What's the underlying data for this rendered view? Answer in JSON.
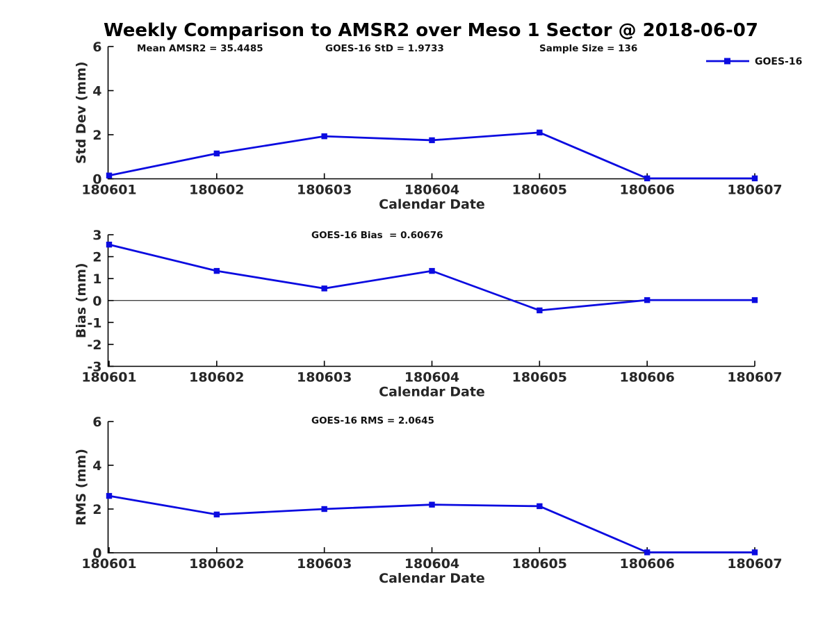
{
  "title": "Weekly Comparison to AMSR2 over Meso 1 Sector @ 2018-06-07",
  "annotations": {
    "mean_amsr2": "Mean AMSR2 = 35.4485",
    "goes16_std": "GOES-16 StD = 1.9733",
    "sample_size": "Sample Size = 136",
    "goes16_bias": "GOES-16 Bias  = 0.60676",
    "goes16_rms": "GOES-16 RMS = 2.0645"
  },
  "series": {
    "name": "GOES-16",
    "color": "#0b0be0"
  },
  "chart_data": [
    {
      "type": "line",
      "subplot": "std_dev",
      "title": "",
      "xlabel": "Calendar Date",
      "ylabel": "Std Dev (mm)",
      "categories": [
        "180601",
        "180602",
        "180603",
        "180604",
        "180605",
        "180606",
        "180607"
      ],
      "series": [
        {
          "name": "GOES-16",
          "color": "#0b0be0",
          "marker": "square",
          "values": [
            0.15,
            1.15,
            1.93,
            1.75,
            2.1,
            0.02,
            0.02
          ]
        }
      ],
      "ylim": [
        0,
        6
      ],
      "yticks": [
        0,
        2,
        4,
        6
      ],
      "grid": false,
      "legend_position": "top-right",
      "annotations": [
        "Mean AMSR2 = 35.4485",
        "GOES-16 StD = 1.9733",
        "Sample Size = 136"
      ]
    },
    {
      "type": "line",
      "subplot": "bias",
      "title": "",
      "xlabel": "Calendar Date",
      "ylabel": "Bias (mm)",
      "categories": [
        "180601",
        "180602",
        "180603",
        "180604",
        "180605",
        "180606",
        "180607"
      ],
      "series": [
        {
          "name": "GOES-16",
          "color": "#0b0be0",
          "marker": "square",
          "values": [
            2.55,
            1.35,
            0.55,
            1.35,
            -0.45,
            0.02,
            0.02
          ]
        }
      ],
      "ylim": [
        -3,
        3
      ],
      "yticks": [
        -3,
        -2,
        -1,
        0,
        1,
        2,
        3
      ],
      "zero_line": true,
      "grid": false,
      "legend_position": "none",
      "annotations": [
        "GOES-16 Bias  = 0.60676"
      ]
    },
    {
      "type": "line",
      "subplot": "rms",
      "title": "",
      "xlabel": "Calendar Date",
      "ylabel": "RMS (mm)",
      "categories": [
        "180601",
        "180602",
        "180603",
        "180604",
        "180605",
        "180606",
        "180607"
      ],
      "series": [
        {
          "name": "GOES-16",
          "color": "#0b0be0",
          "marker": "square",
          "values": [
            2.6,
            1.75,
            2.0,
            2.2,
            2.13,
            0.02,
            0.02
          ]
        }
      ],
      "ylim": [
        0,
        6
      ],
      "yticks": [
        0,
        2,
        4,
        6
      ],
      "grid": false,
      "legend_position": "none",
      "annotations": [
        "GOES-16 RMS = 2.0645"
      ]
    }
  ]
}
